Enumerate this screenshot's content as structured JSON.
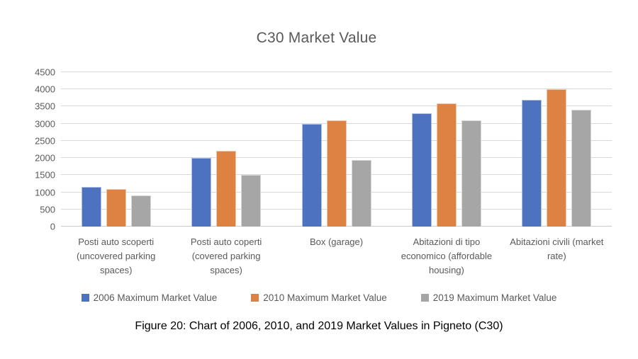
{
  "title": "C30 Market Value",
  "caption": "Figure 20: Chart of 2006, 2010, and 2019 Market Values in Pigneto (C30)",
  "colors": {
    "series": [
      "#4D72BF",
      "#DE8244",
      "#A6A6A6"
    ],
    "title_text": "#595959",
    "axis_text": "#595959",
    "gridline": "#D9D9D9",
    "background": "#FFFFFF",
    "caption_text": "#000000"
  },
  "chart_data": {
    "type": "bar",
    "title": "C30 Market Value",
    "categories": [
      "Posti auto scoperti (uncovered parking spaces)",
      "Posti auto coperti (covered parking spaces)",
      "Box (garage)",
      "Abitazioni di tipo economico (affordable housing)",
      "Abitazioni civili (market rate)"
    ],
    "series": [
      {
        "name": "2006 Maximum Market Value",
        "color": "#4D72BF",
        "values": [
          1150,
          2000,
          3000,
          3300,
          3700
        ]
      },
      {
        "name": "2010 Maximum Market Value",
        "color": "#DE8244",
        "values": [
          1100,
          2200,
          3100,
          3600,
          4000
        ]
      },
      {
        "name": "2019 Maximum Market Value",
        "color": "#A6A6A6",
        "values": [
          900,
          1500,
          1950,
          3100,
          3400
        ]
      }
    ],
    "xlabel": "",
    "ylabel": "",
    "ylim": [
      0,
      4500
    ],
    "ytick_step": 500,
    "grid": true,
    "legend_position": "bottom"
  }
}
